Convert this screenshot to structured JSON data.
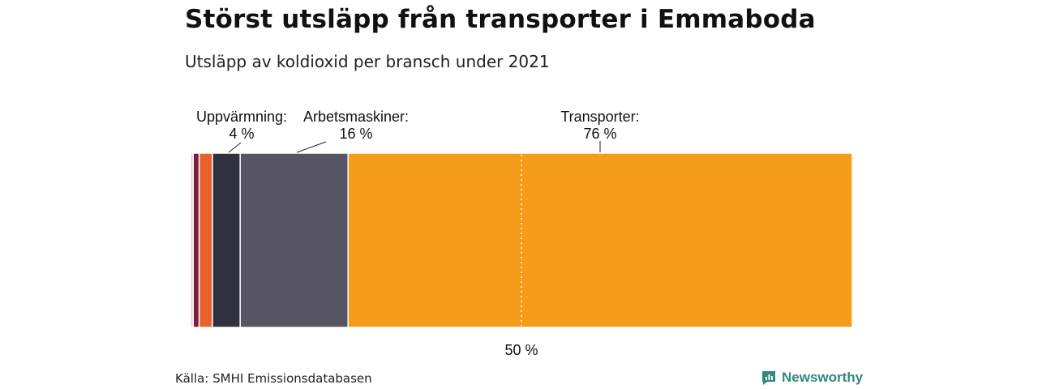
{
  "header": {
    "title": "Störst utsläpp från transporter i Emmaboda",
    "subtitle": "Utsläpp av koldioxid per bransch under 2021"
  },
  "footer": {
    "source": "Källa: SMHI Emissionsdatabasen",
    "brand": "Newsworthy",
    "brand_color": "#2e8a7a"
  },
  "chart_data": {
    "type": "bar",
    "orientation": "horizontal-stacked",
    "title": "Störst utsläpp från transporter i Emmaboda",
    "subtitle": "Utsläpp av koldioxid per bransch under 2021",
    "unit": "%",
    "xlim": [
      0,
      100
    ],
    "reference_line": {
      "value": 50,
      "label": "50 %"
    },
    "segments": [
      {
        "name": "",
        "value": 0.4,
        "color": "#f1c9cf"
      },
      {
        "name": "",
        "value": 0.9,
        "color": "#7a1f3c"
      },
      {
        "name": "",
        "value": 2.0,
        "color": "#e8612c"
      },
      {
        "name": "Uppvärmning:",
        "value_label": "4 %",
        "value": 4.2,
        "color": "#31303f"
      },
      {
        "name": "Arbetsmaskiner:",
        "value_label": "16 %",
        "value": 16.3,
        "color": "#575563"
      },
      {
        "name": "Transporter:",
        "value_label": "76 %",
        "value": 76.2,
        "color": "#f59c1a"
      }
    ]
  }
}
